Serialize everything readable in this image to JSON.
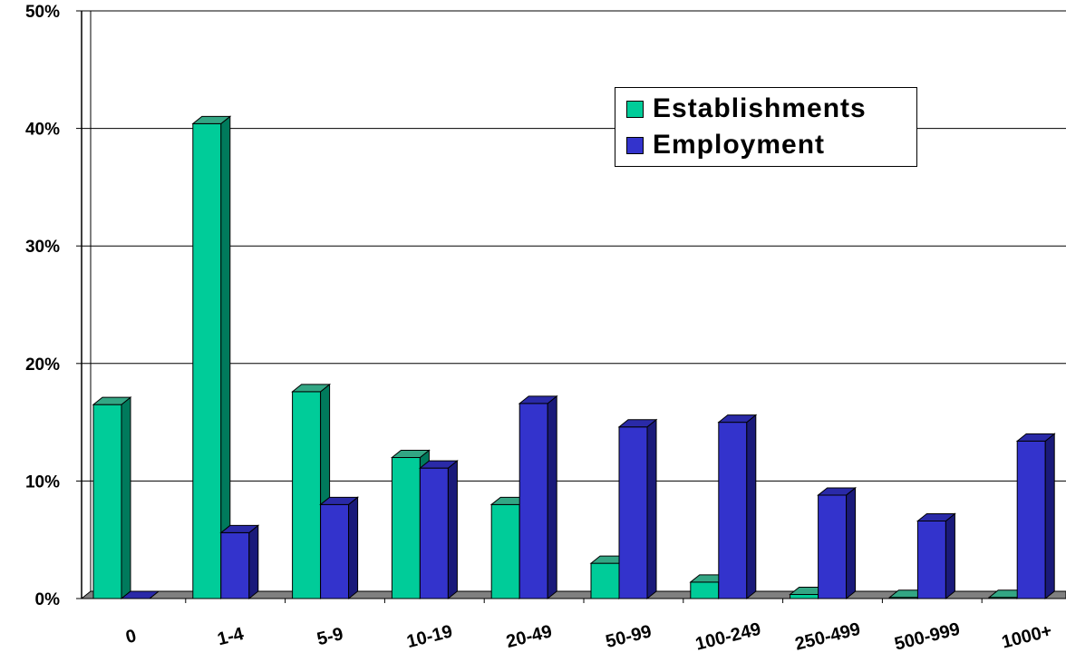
{
  "chart_data": {
    "type": "bar",
    "categories": [
      "0",
      "1-4",
      "5-9",
      "10-19",
      "20-49",
      "50-99",
      "100-249",
      "250-499",
      "500-999",
      "1000+"
    ],
    "series": [
      {
        "name": "Establishments",
        "color": "#00CC99",
        "side_color": "#007a5c",
        "top_color": "#33a684",
        "values": [
          16.5,
          40.4,
          17.6,
          12.0,
          8.0,
          3.0,
          1.4,
          0.35,
          0.1,
          0.1
        ]
      },
      {
        "name": "Employment",
        "color": "#3333CC",
        "side_color": "#1a1a7a",
        "top_color": "#2a2aa8",
        "values": [
          0,
          5.6,
          8.0,
          11.1,
          16.6,
          14.6,
          15.0,
          8.8,
          6.6,
          13.4
        ]
      }
    ],
    "y_ticks": [
      "0%",
      "10%",
      "20%",
      "30%",
      "40%",
      "50%"
    ],
    "ylim": [
      0,
      50
    ],
    "grid": true,
    "legend_position": "top-right",
    "title": "",
    "xlabel": "",
    "ylabel": ""
  }
}
